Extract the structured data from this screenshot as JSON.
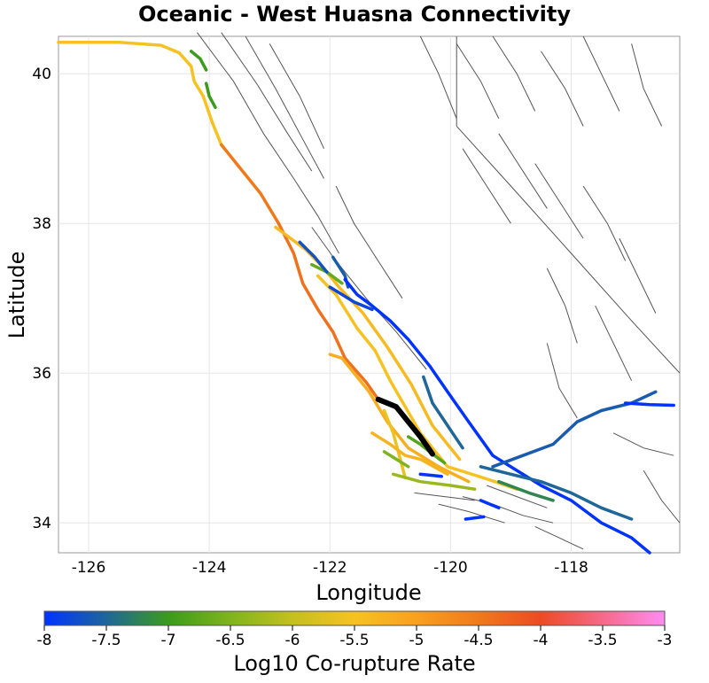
{
  "chart_data": {
    "type": "map",
    "title": "Oceanic - West Huasna Connectivity",
    "xlabel": "Longitude",
    "ylabel": "Latitude",
    "xlim": [
      -126.5,
      -116.2
    ],
    "ylim": [
      33.6,
      40.5
    ],
    "xticks": [
      -126,
      -124,
      -122,
      -120,
      -118
    ],
    "yticks": [
      34,
      36,
      38,
      40
    ],
    "grid": true,
    "colorbar": {
      "label": "Log10 Co-rupture Rate",
      "min": -8,
      "max": -3,
      "ticks": [
        "-8",
        "-7.5",
        "-7",
        "-6.5",
        "-6",
        "-5.5",
        "-5",
        "-4.5",
        "-4",
        "-3.5",
        "-3"
      ],
      "stops": [
        {
          "value": -8,
          "color": "#0033ff"
        },
        {
          "value": -7.5,
          "color": "#1f6699"
        },
        {
          "value": -7,
          "color": "#3c9b1c"
        },
        {
          "value": -6.5,
          "color": "#7fb41e"
        },
        {
          "value": -6,
          "color": "#c4c020"
        },
        {
          "value": -5.5,
          "color": "#f5c222"
        },
        {
          "value": -5,
          "color": "#f8a020"
        },
        {
          "value": -4.5,
          "color": "#ef7a1c"
        },
        {
          "value": -4,
          "color": "#ec4b24"
        },
        {
          "value": -3.5,
          "color": "#f46a8a"
        },
        {
          "value": -3,
          "color": "#ff8cf2"
        }
      ]
    },
    "highlight": {
      "color": "#000000",
      "points": [
        [
          -121.2,
          35.65
        ],
        [
          -120.9,
          35.55
        ],
        [
          -120.7,
          35.35
        ],
        [
          -120.5,
          35.15
        ],
        [
          -120.3,
          34.92
        ]
      ]
    },
    "faults": [
      {
        "value": -5.5,
        "points": [
          [
            -126.5,
            40.42
          ],
          [
            -125.5,
            40.42
          ],
          [
            -124.8,
            40.38
          ],
          [
            -124.5,
            40.28
          ],
          [
            -124.3,
            40.1
          ],
          [
            -124.25,
            39.9
          ],
          [
            -124.1,
            39.7
          ]
        ]
      },
      {
        "value": -5.5,
        "points": [
          [
            -124.1,
            39.7
          ],
          [
            -123.95,
            39.35
          ],
          [
            -123.8,
            39.05
          ]
        ]
      },
      {
        "value": -4.5,
        "points": [
          [
            -123.8,
            39.05
          ],
          [
            -123.5,
            38.75
          ],
          [
            -123.15,
            38.4
          ],
          [
            -122.85,
            38.0
          ]
        ]
      },
      {
        "value": -4.4,
        "points": [
          [
            -122.85,
            38.0
          ],
          [
            -122.6,
            37.6
          ],
          [
            -122.45,
            37.2
          ],
          [
            -122.2,
            36.85
          ],
          [
            -121.95,
            36.55
          ],
          [
            -121.75,
            36.2
          ],
          [
            -121.4,
            35.88
          ],
          [
            -121.2,
            35.65
          ]
        ]
      },
      {
        "value": -7.0,
        "points": [
          [
            -124.05,
            39.87
          ],
          [
            -124.0,
            39.7
          ],
          [
            -123.9,
            39.55
          ]
        ]
      },
      {
        "value": -7.0,
        "points": [
          [
            -124.3,
            40.3
          ],
          [
            -124.15,
            40.2
          ],
          [
            -124.05,
            40.05
          ]
        ]
      },
      {
        "value": -5.4,
        "points": [
          [
            -122.9,
            37.95
          ],
          [
            -122.4,
            37.65
          ],
          [
            -122.1,
            37.4
          ],
          [
            -121.85,
            37.15
          ],
          [
            -121.45,
            36.8
          ],
          [
            -121.05,
            36.35
          ],
          [
            -120.65,
            35.85
          ],
          [
            -120.3,
            35.3
          ],
          [
            -119.85,
            34.85
          ]
        ]
      },
      {
        "value": -5.5,
        "points": [
          [
            -122.2,
            37.3
          ],
          [
            -121.9,
            37.05
          ],
          [
            -121.55,
            36.6
          ],
          [
            -121.25,
            36.3
          ],
          [
            -121.0,
            35.9
          ],
          [
            -120.75,
            35.55
          ],
          [
            -120.5,
            35.2
          ],
          [
            -120.05,
            34.75
          ],
          [
            -119.45,
            34.6
          ],
          [
            -118.9,
            34.45
          ]
        ]
      },
      {
        "value": -5.2,
        "points": [
          [
            -122.0,
            36.25
          ],
          [
            -121.8,
            36.2
          ],
          [
            -121.55,
            35.95
          ],
          [
            -121.35,
            35.75
          ],
          [
            -121.05,
            35.35
          ],
          [
            -120.7,
            35.0
          ],
          [
            -120.2,
            34.75
          ],
          [
            -119.7,
            34.55
          ]
        ]
      },
      {
        "value": -5.6,
        "points": [
          [
            -121.1,
            35.5
          ],
          [
            -120.95,
            35.2
          ],
          [
            -120.85,
            34.9
          ],
          [
            -120.75,
            34.6
          ]
        ]
      },
      {
        "value": -5.3,
        "points": [
          [
            -121.3,
            35.2
          ],
          [
            -121.0,
            35.05
          ],
          [
            -120.75,
            34.9
          ],
          [
            -120.5,
            34.85
          ],
          [
            -120.05,
            34.65
          ]
        ]
      },
      {
        "value": -6.7,
        "points": [
          [
            -122.3,
            37.45
          ],
          [
            -122.05,
            37.35
          ],
          [
            -121.8,
            37.2
          ]
        ]
      },
      {
        "value": -7.6,
        "points": [
          [
            -121.95,
            37.55
          ],
          [
            -121.75,
            37.3
          ],
          [
            -121.7,
            37.15
          ]
        ]
      },
      {
        "value": -8.0,
        "points": [
          [
            -121.75,
            37.25
          ],
          [
            -121.55,
            37.05
          ],
          [
            -121.3,
            36.9
          ],
          [
            -121.0,
            36.7
          ],
          [
            -120.7,
            36.45
          ],
          [
            -120.35,
            36.1
          ],
          [
            -120.05,
            35.75
          ],
          [
            -119.7,
            35.35
          ],
          [
            -119.3,
            34.9
          ],
          [
            -118.9,
            34.7
          ],
          [
            -118.5,
            34.5
          ],
          [
            -118.0,
            34.3
          ],
          [
            -117.5,
            34.0
          ],
          [
            -117.0,
            33.8
          ],
          [
            -116.7,
            33.6
          ]
        ]
      },
      {
        "value": -7.8,
        "points": [
          [
            -122.0,
            37.15
          ],
          [
            -121.6,
            36.95
          ],
          [
            -121.3,
            36.85
          ]
        ]
      },
      {
        "value": -7.5,
        "points": [
          [
            -120.45,
            35.95
          ],
          [
            -120.3,
            35.6
          ],
          [
            -120.05,
            35.3
          ],
          [
            -119.8,
            35.0
          ]
        ]
      },
      {
        "value": -7.5,
        "points": [
          [
            -119.5,
            34.75
          ],
          [
            -119.0,
            34.65
          ],
          [
            -118.5,
            34.55
          ],
          [
            -118.0,
            34.4
          ],
          [
            -117.5,
            34.2
          ],
          [
            -117.0,
            34.05
          ]
        ]
      },
      {
        "value": -7.6,
        "points": [
          [
            -119.3,
            34.75
          ],
          [
            -118.8,
            34.9
          ],
          [
            -118.3,
            35.05
          ],
          [
            -117.9,
            35.35
          ],
          [
            -117.5,
            35.5
          ],
          [
            -117.0,
            35.6
          ],
          [
            -116.6,
            35.75
          ]
        ]
      },
      {
        "value": -8.0,
        "points": [
          [
            -117.1,
            35.6
          ],
          [
            -116.7,
            35.58
          ],
          [
            -116.3,
            35.57
          ]
        ]
      },
      {
        "value": -6.8,
        "points": [
          [
            -120.7,
            35.15
          ],
          [
            -120.5,
            35.05
          ],
          [
            -120.35,
            34.95
          ],
          [
            -120.1,
            34.8
          ]
        ]
      },
      {
        "value": -6.5,
        "points": [
          [
            -121.1,
            34.95
          ],
          [
            -120.9,
            34.85
          ],
          [
            -120.7,
            34.75
          ]
        ]
      },
      {
        "value": -6.3,
        "points": [
          [
            -120.95,
            34.65
          ],
          [
            -120.5,
            34.55
          ],
          [
            -120.0,
            34.5
          ],
          [
            -119.6,
            34.45
          ]
        ]
      },
      {
        "value": -7.2,
        "points": [
          [
            -119.2,
            34.55
          ],
          [
            -118.7,
            34.4
          ],
          [
            -118.3,
            34.3
          ]
        ]
      },
      {
        "value": -8.0,
        "points": [
          [
            -120.5,
            34.65
          ],
          [
            -120.15,
            34.62
          ]
        ]
      },
      {
        "value": -8.0,
        "points": [
          [
            -119.5,
            34.3
          ],
          [
            -119.2,
            34.2
          ]
        ]
      },
      {
        "value": -8.0,
        "points": [
          [
            -119.75,
            34.05
          ],
          [
            -119.45,
            34.08
          ]
        ]
      },
      {
        "value": -7.7,
        "points": [
          [
            -122.5,
            37.75
          ],
          [
            -122.25,
            37.55
          ],
          [
            -122.05,
            37.35
          ]
        ]
      }
    ],
    "background_faults": [
      [
        [
          -124.2,
          40.55
        ],
        [
          -123.6,
          39.9
        ],
        [
          -123.1,
          39.2
        ],
        [
          -122.6,
          38.6
        ],
        [
          -122.2,
          38.1
        ],
        [
          -121.85,
          37.6
        ]
      ],
      [
        [
          -123.8,
          40.55
        ],
        [
          -123.2,
          39.85
        ],
        [
          -122.7,
          39.2
        ],
        [
          -122.3,
          38.7
        ]
      ],
      [
        [
          -123.4,
          40.5
        ],
        [
          -122.9,
          39.8
        ],
        [
          -122.5,
          39.2
        ],
        [
          -122.1,
          38.6
        ]
      ],
      [
        [
          -123.0,
          40.4
        ],
        [
          -122.5,
          39.7
        ],
        [
          -122.1,
          39.0
        ]
      ],
      [
        [
          -122.3,
          37.95
        ],
        [
          -121.9,
          37.5
        ],
        [
          -121.4,
          37.0
        ],
        [
          -120.9,
          36.55
        ],
        [
          -120.4,
          36.05
        ]
      ],
      [
        [
          -121.9,
          38.5
        ],
        [
          -121.6,
          38.0
        ],
        [
          -121.2,
          37.5
        ],
        [
          -120.8,
          37.0
        ]
      ],
      [
        [
          -120.5,
          40.5
        ],
        [
          -120.2,
          40.0
        ],
        [
          -119.9,
          39.4
        ]
      ],
      [
        [
          -119.9,
          40.4
        ],
        [
          -119.5,
          39.9
        ],
        [
          -119.2,
          39.4
        ]
      ],
      [
        [
          -119.3,
          40.5
        ],
        [
          -118.9,
          40.0
        ],
        [
          -118.6,
          39.5
        ]
      ],
      [
        [
          -118.5,
          40.3
        ],
        [
          -118.1,
          39.8
        ],
        [
          -117.8,
          39.3
        ]
      ],
      [
        [
          -117.8,
          40.5
        ],
        [
          -117.5,
          40.0
        ],
        [
          -117.2,
          39.5
        ]
      ],
      [
        [
          -117.0,
          40.4
        ],
        [
          -116.8,
          39.8
        ],
        [
          -116.5,
          39.3
        ]
      ],
      [
        [
          -119.8,
          39.0
        ],
        [
          -119.4,
          38.5
        ],
        [
          -119.0,
          38.0
        ]
      ],
      [
        [
          -119.2,
          39.2
        ],
        [
          -118.8,
          38.7
        ],
        [
          -118.4,
          38.2
        ]
      ],
      [
        [
          -118.6,
          38.8
        ],
        [
          -118.2,
          38.3
        ],
        [
          -117.8,
          37.8
        ]
      ],
      [
        [
          -117.8,
          38.5
        ],
        [
          -117.4,
          38.0
        ],
        [
          -117.1,
          37.5
        ]
      ],
      [
        [
          -117.2,
          37.8
        ],
        [
          -116.9,
          37.3
        ],
        [
          -116.6,
          36.8
        ]
      ],
      [
        [
          -118.4,
          37.4
        ],
        [
          -118.1,
          36.9
        ],
        [
          -117.9,
          36.4
        ]
      ],
      [
        [
          -117.6,
          36.9
        ],
        [
          -117.3,
          36.4
        ],
        [
          -117.0,
          35.9
        ]
      ],
      [
        [
          -119.9,
          40.5
        ],
        [
          -119.9,
          39.3
        ]
      ],
      [
        [
          -119.9,
          39.3
        ],
        [
          -119.0,
          38.5
        ],
        [
          -118.0,
          37.6
        ],
        [
          -117.0,
          36.7
        ],
        [
          -116.2,
          36.0
        ]
      ],
      [
        [
          -118.4,
          36.4
        ],
        [
          -118.2,
          35.8
        ],
        [
          -117.9,
          35.4
        ]
      ],
      [
        [
          -117.3,
          35.2
        ],
        [
          -116.8,
          35.0
        ],
        [
          -116.3,
          34.9
        ]
      ],
      [
        [
          -116.8,
          34.7
        ],
        [
          -116.5,
          34.3
        ],
        [
          -116.2,
          34.0
        ]
      ],
      [
        [
          -119.8,
          34.35
        ],
        [
          -119.3,
          34.25
        ],
        [
          -118.8,
          34.1
        ],
        [
          -118.3,
          34.0
        ]
      ],
      [
        [
          -120.2,
          34.25
        ],
        [
          -119.7,
          34.15
        ],
        [
          -119.1,
          34.0
        ]
      ],
      [
        [
          -118.6,
          33.95
        ],
        [
          -118.2,
          33.8
        ],
        [
          -117.8,
          33.65
        ]
      ],
      [
        [
          -119.4,
          34.5
        ],
        [
          -118.9,
          34.35
        ],
        [
          -118.4,
          34.2
        ]
      ],
      [
        [
          -120.6,
          34.4
        ],
        [
          -120.1,
          34.35
        ],
        [
          -119.6,
          34.3
        ]
      ]
    ]
  }
}
